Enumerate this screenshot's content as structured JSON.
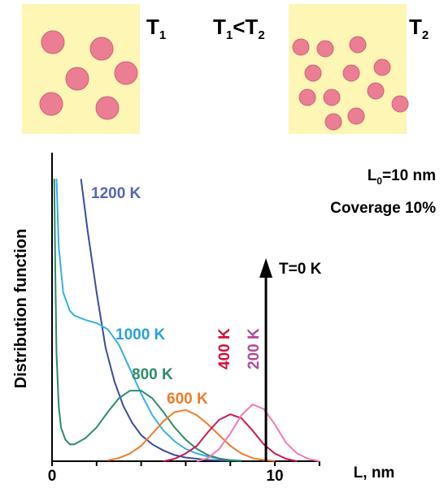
{
  "illustration": {
    "left": {
      "main": "T",
      "sub": "1"
    },
    "middle": {
      "a": "T",
      "a_sub": "1",
      "b": "<T",
      "b_sub": "2"
    },
    "right": {
      "main": "T",
      "sub": "2"
    }
  },
  "chart_data": {
    "type": "line",
    "x_label": "L, nm",
    "y_label": "Distribution function",
    "xlim": [
      0,
      12
    ],
    "ylim": [
      0,
      100
    ],
    "xticks": [
      0,
      10
    ],
    "xminor_ticks": [
      2,
      4,
      6,
      8,
      12
    ],
    "params": {
      "main": "L",
      "sub": "0",
      "rest": "=10 nm"
    },
    "coverage": "Coverage 10%",
    "arrow": {
      "label": "T=0 K",
      "x": 9.6
    },
    "series": [
      {
        "name": "1200 K",
        "color": "#3a4c9e",
        "label_color": "#5566b0",
        "x": [
          1.3,
          1.6,
          2,
          2.4,
          2.8,
          3.2,
          3.6,
          4,
          4.5,
          5,
          5.5,
          6,
          7,
          8
        ],
        "values": [
          92,
          75,
          55,
          37,
          26,
          18,
          12.5,
          8.5,
          5.5,
          3.5,
          2,
          1.2,
          0.4,
          0.1
        ]
      },
      {
        "name": "1000 K",
        "color": "#35b1e6",
        "label_color": "#29a0dc",
        "x": [
          0.2,
          0.3,
          0.5,
          0.8,
          1,
          1.5,
          2,
          2.5,
          3,
          3.5,
          4,
          4.5,
          5,
          5.5,
          6,
          6.5,
          7,
          7.5,
          8,
          8.5
        ],
        "values": [
          92,
          70,
          55,
          49,
          47.5,
          46,
          45,
          43,
          38,
          30,
          22,
          15,
          10,
          6.5,
          4,
          2.5,
          1.5,
          0.8,
          0.4,
          0.2
        ]
      },
      {
        "name": "800 K",
        "color": "#2e8b6a",
        "label_color": "#2e8b6a",
        "x": [
          0.1,
          0.15,
          0.2,
          0.3,
          0.4,
          0.6,
          0.8,
          1,
          1.5,
          2,
          2.5,
          3,
          3.5,
          4,
          4.5,
          5,
          5.5,
          6,
          6.5,
          7,
          7.5,
          8,
          8.5
        ],
        "values": [
          92,
          60,
          35,
          18,
          11,
          7,
          5.5,
          5.5,
          7.5,
          11,
          16,
          20.5,
          23,
          23,
          20.5,
          16,
          11,
          7,
          4,
          2,
          0.9,
          0.3,
          0.1
        ]
      },
      {
        "name": "600 K",
        "color": "#ef7b2c",
        "label_color": "#ef7b2c",
        "x": [
          2.5,
          3,
          3.5,
          4,
          4.5,
          5,
          5.5,
          6,
          6.5,
          7,
          7.5,
          8,
          8.5,
          9,
          9.5,
          10
        ],
        "values": [
          0.3,
          1,
          2.5,
          5,
          9,
          13,
          16,
          16.7,
          15,
          12,
          8.5,
          5,
          2.5,
          1,
          0.4,
          0.1
        ]
      },
      {
        "name": "400 K",
        "color": "#c8185a",
        "label_color": "#d0103a",
        "x": [
          5,
          5.5,
          6,
          6.5,
          7,
          7.5,
          8,
          8.5,
          9,
          9.5,
          10,
          10.5,
          11
        ],
        "values": [
          0,
          0.8,
          2.5,
          5,
          9.5,
          13.5,
          15.3,
          14,
          10,
          5.5,
          2.5,
          0.8,
          0
        ]
      },
      {
        "name": "200 K",
        "color": "#f07ab8",
        "label_color": "#b04a9a",
        "x": [
          6.5,
          7,
          7.5,
          8,
          8.5,
          9,
          9.5,
          10,
          10.5,
          11,
          11.5,
          12
        ],
        "values": [
          0,
          1,
          4,
          9,
          15,
          18.5,
          17,
          12,
          6,
          2.5,
          0.8,
          0
        ]
      }
    ]
  }
}
